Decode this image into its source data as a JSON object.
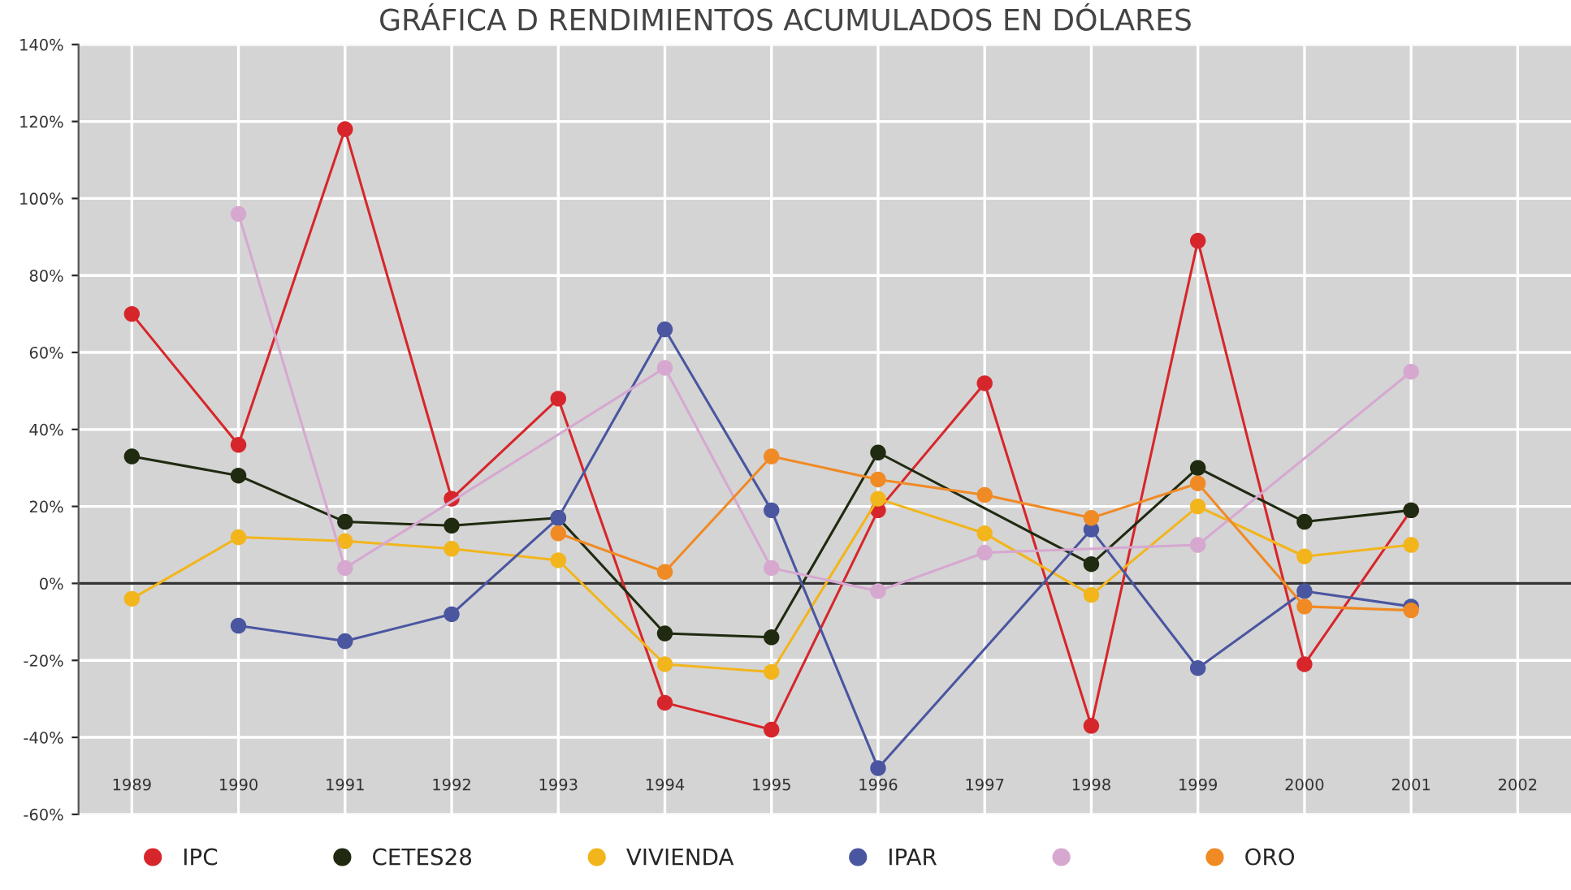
{
  "chart_data": {
    "type": "line",
    "title": "GRÁFICA D RENDIMIENTOS ACUMULADOS EN DÓLARES",
    "xlim": [
      1988.5,
      2002.5
    ],
    "xticks": [
      1989,
      1990,
      1991,
      1992,
      1993,
      1994,
      1995,
      1996,
      1997,
      1998,
      1999,
      2000,
      2001,
      2002
    ],
    "ylim": [
      -60,
      140
    ],
    "yticks": [
      {
        "value": -60,
        "label": "-60%"
      },
      {
        "value": -40,
        "label": "-40%"
      },
      {
        "value": -20,
        "label": "-20%"
      },
      {
        "value": 0,
        "label": "0%"
      },
      {
        "value": 20,
        "label": "20%"
      },
      {
        "value": 40,
        "label": "40%"
      },
      {
        "value": 60,
        "label": "60%"
      },
      {
        "value": 80,
        "label": "80%"
      },
      {
        "value": 100,
        "label": "100%"
      },
      {
        "value": 120,
        "label": "120%"
      },
      {
        "value": 140,
        "label": "140%"
      }
    ],
    "grid": true,
    "marker": "circle",
    "line_style": "solid",
    "legend": "bottom",
    "ref_lines": [
      {
        "axis": "y",
        "value": 0,
        "label": null,
        "color": "#333333"
      }
    ],
    "series": [
      {
        "name": "IPC",
        "color": "#d7262b",
        "x": [
          1989,
          1990,
          1991,
          1992,
          1993,
          1994,
          1995,
          1996,
          1997,
          1998,
          1999,
          2000,
          2001
        ],
        "values": [
          70,
          36,
          118,
          22,
          48,
          -31,
          -38,
          19,
          52,
          -37,
          89,
          -21,
          19
        ]
      },
      {
        "name": "CETES28",
        "color": "#1f2a10",
        "x": [
          1989,
          1990,
          1991,
          1992,
          1993,
          1994,
          1995,
          1996,
          1998,
          1999,
          2000,
          2001
        ],
        "values": [
          33,
          28,
          16,
          15,
          17,
          -13,
          -14,
          34,
          5,
          30,
          16,
          19
        ]
      },
      {
        "name": "VIVIENDA",
        "color": "#f2b51c",
        "x": [
          1989,
          1990,
          1991,
          1992,
          1993,
          1994,
          1995,
          1996,
          1997,
          1998,
          1999,
          2000,
          2001
        ],
        "values": [
          -4,
          12,
          11,
          9,
          6,
          -21,
          -23,
          22,
          13,
          -3,
          20,
          7,
          10
        ]
      },
      {
        "name": "IPAR",
        "color": "#4a56a0",
        "x": [
          1990,
          1991,
          1992,
          1993,
          1994,
          1995,
          1996,
          1998,
          1999,
          2000,
          2001
        ],
        "values": [
          -11,
          -15,
          -8,
          17,
          66,
          19,
          -48,
          14,
          -22,
          -2,
          -6
        ]
      },
      {
        "color": "#d6a8d0",
        "x": [
          1990,
          1991,
          1994,
          1995,
          1996,
          1997,
          1999,
          2001
        ],
        "values": [
          96,
          4,
          56,
          4,
          -2,
          8,
          10,
          55
        ]
      },
      {
        "name": "ORO",
        "color": "#f08a24",
        "x": [
          1993,
          1994,
          1995,
          1996,
          1997,
          1998,
          1999,
          2000,
          2001
        ],
        "values": [
          13,
          3,
          33,
          27,
          23,
          17,
          26,
          -6,
          -7
        ]
      }
    ]
  }
}
